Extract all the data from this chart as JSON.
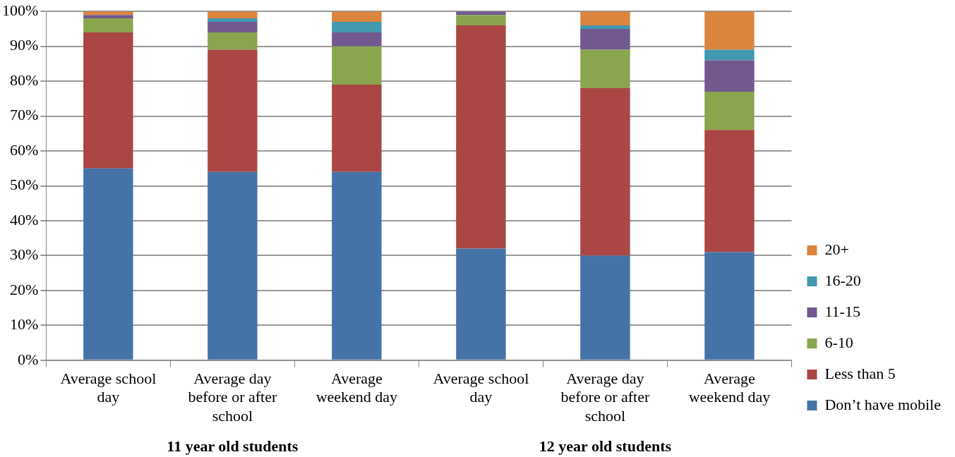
{
  "chart_data": {
    "type": "bar",
    "stacked": true,
    "categories": [
      "Average school day",
      "Average day before or after school",
      "Average weekend day",
      "Average school day",
      "Average day before or after school",
      "Average weekend day"
    ],
    "series": [
      {
        "name": "Don’t have mobile",
        "color": "#4572a7",
        "values": [
          55,
          54,
          54,
          32,
          30,
          31
        ]
      },
      {
        "name": "Less than 5",
        "color": "#aa4643",
        "values": [
          39,
          35,
          25,
          64,
          48,
          35
        ]
      },
      {
        "name": "6-10",
        "color": "#89a54e",
        "values": [
          4,
          5,
          11,
          3,
          11,
          11
        ]
      },
      {
        "name": "11-15",
        "color": "#71588f",
        "values": [
          1,
          3,
          4,
          1,
          6,
          9
        ]
      },
      {
        "name": "16-20",
        "color": "#4198af",
        "values": [
          0,
          1,
          3,
          0,
          1,
          3
        ]
      },
      {
        "name": "20+",
        "color": "#db843d",
        "values": [
          1,
          2,
          3,
          0,
          4,
          11
        ]
      }
    ],
    "ylim": [
      0,
      100
    ],
    "yticks": [
      {
        "value": 0,
        "label": "0%"
      },
      {
        "value": 10,
        "label": "10%"
      },
      {
        "value": 20,
        "label": "20%"
      },
      {
        "value": 30,
        "label": "30%"
      },
      {
        "value": 40,
        "label": "40%"
      },
      {
        "value": 50,
        "label": "50%"
      },
      {
        "value": 60,
        "label": "60%"
      },
      {
        "value": 70,
        "label": "70%"
      },
      {
        "value": 80,
        "label": "80%"
      },
      {
        "value": 90,
        "label": "90%"
      },
      {
        "value": 100,
        "label": "100%"
      }
    ],
    "grid": "y",
    "legend": "right",
    "annotations": [
      "11 year old students",
      "12 year old students"
    ]
  }
}
